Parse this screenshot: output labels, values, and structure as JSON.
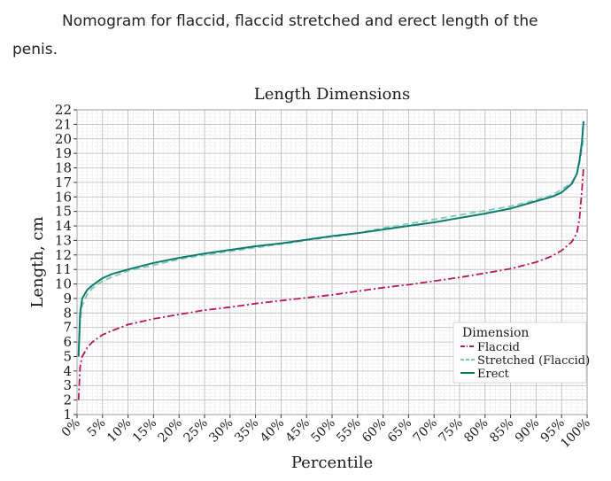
{
  "caption": {
    "line1": "Nomogram for flaccid, flaccid stretched and erect length of the",
    "line2": "penis."
  },
  "chart_data": {
    "type": "line",
    "title": "Length Dimensions",
    "xlabel": "Percentile",
    "ylabel": "Length, cm",
    "xlim": [
      0,
      100
    ],
    "ylim": [
      1,
      22
    ],
    "x_ticks": [
      "0%",
      "5%",
      "10%",
      "15%",
      "20%",
      "25%",
      "30%",
      "35%",
      "40%",
      "45%",
      "50%",
      "55%",
      "60%",
      "65%",
      "70%",
      "75%",
      "80%",
      "85%",
      "90%",
      "95%",
      "100%"
    ],
    "y_ticks": [
      "1",
      "2",
      "3",
      "4",
      "5",
      "6",
      "7",
      "8",
      "9",
      "10",
      "11",
      "12",
      "13",
      "14",
      "15",
      "16",
      "17",
      "18",
      "19",
      "20",
      "21",
      "22"
    ],
    "grid": true,
    "legend": {
      "title": "Dimension",
      "position": "bottom-right"
    },
    "series": [
      {
        "name": "Flaccid",
        "color": "#b0195a",
        "style": "dashdot",
        "x": [
          0.3,
          0.6,
          1,
          2,
          3,
          5,
          7,
          10,
          15,
          20,
          25,
          30,
          35,
          40,
          45,
          50,
          55,
          60,
          65,
          70,
          75,
          80,
          85,
          90,
          93,
          95,
          97,
          98,
          98.5,
          99,
          99.3
        ],
        "y": [
          2.0,
          4.3,
          5.0,
          5.6,
          6.0,
          6.5,
          6.8,
          7.2,
          7.6,
          7.9,
          8.2,
          8.4,
          8.65,
          8.85,
          9.05,
          9.25,
          9.5,
          9.75,
          9.95,
          10.2,
          10.45,
          10.75,
          11.05,
          11.5,
          11.9,
          12.3,
          12.9,
          13.5,
          14.5,
          16.5,
          18.0
        ]
      },
      {
        "name": "Stretched (Flaccid)",
        "color": "#7ec8b8",
        "style": "dashed",
        "x": [
          0.3,
          0.6,
          1,
          2,
          3,
          5,
          7,
          10,
          15,
          20,
          25,
          30,
          35,
          40,
          45,
          50,
          55,
          60,
          65,
          70,
          75,
          80,
          85,
          90,
          93,
          95,
          97,
          98,
          98.5,
          99,
          99.3
        ],
        "y": [
          5.0,
          7.5,
          8.5,
          9.3,
          9.7,
          10.2,
          10.5,
          10.9,
          11.3,
          11.7,
          12.0,
          12.25,
          12.5,
          12.75,
          13.0,
          13.25,
          13.5,
          13.85,
          14.15,
          14.45,
          14.75,
          15.05,
          15.35,
          15.8,
          16.1,
          16.5,
          17.0,
          17.6,
          18.3,
          19.3,
          20.0
        ]
      },
      {
        "name": "Erect",
        "color": "#0f7b70",
        "style": "solid",
        "x": [
          0.3,
          0.6,
          1,
          2,
          3,
          5,
          7,
          10,
          15,
          20,
          25,
          30,
          35,
          40,
          45,
          50,
          55,
          60,
          65,
          70,
          75,
          80,
          85,
          90,
          93,
          95,
          97,
          98,
          98.5,
          99,
          99.3
        ],
        "y": [
          5.0,
          8.0,
          9.0,
          9.6,
          9.9,
          10.4,
          10.7,
          11.0,
          11.45,
          11.8,
          12.1,
          12.35,
          12.6,
          12.8,
          13.05,
          13.3,
          13.5,
          13.75,
          14.0,
          14.25,
          14.55,
          14.85,
          15.2,
          15.7,
          16.0,
          16.3,
          16.9,
          17.6,
          18.5,
          19.8,
          21.2
        ]
      }
    ]
  }
}
